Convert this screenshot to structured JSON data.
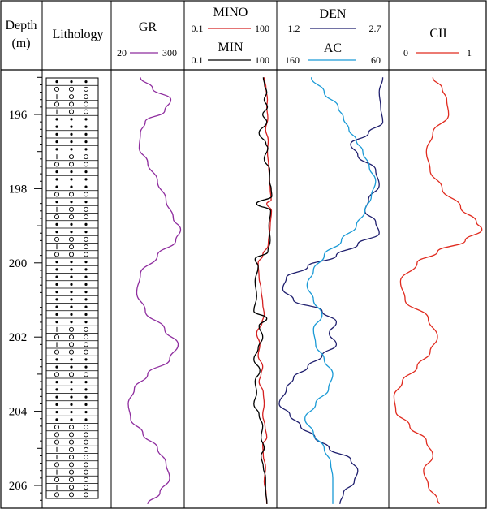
{
  "chart_data": {
    "type": "line",
    "depth_axis": {
      "label_line1": "Depth",
      "label_line2": "(m)",
      "range": [
        194.8,
        206.5
      ],
      "ticks": [
        196,
        198,
        200,
        202,
        204,
        206
      ]
    },
    "lithology": {
      "label": "Lithology",
      "rows": [
        "d",
        "o",
        "l",
        "o",
        "l",
        "d",
        "d",
        "d",
        "d",
        "d",
        "l",
        "o",
        "d",
        "d",
        "d",
        "o",
        "d",
        "l",
        "o",
        "d",
        "d",
        "o",
        "l",
        "o",
        "d",
        "d",
        "d",
        "d",
        "d",
        "d",
        "d",
        "d",
        "d",
        "l",
        "o",
        "l",
        "o",
        "d",
        "d",
        "o",
        "d",
        "d",
        "d",
        "d",
        "d",
        "d",
        "o",
        "o",
        "o",
        "l",
        "l",
        "o",
        "l",
        "o",
        "l",
        "o"
      ]
    },
    "tracks": [
      {
        "title": "GR",
        "series": [
          {
            "name": "GR",
            "color": "#8e2c9e",
            "scale_min": "20",
            "scale_max": "300",
            "depth": [
              195.0,
              195.3,
              195.6,
              195.9,
              196.2,
              196.5,
              196.9,
              197.3,
              197.8,
              198.3,
              198.8,
              199.1,
              199.4,
              199.8,
              200.3,
              200.8,
              201.3,
              201.8,
              202.2,
              202.6,
              203.0,
              203.4,
              203.8,
              204.2,
              204.6,
              205.0,
              205.4,
              205.8,
              206.2,
              206.5
            ],
            "values": [
              130,
              180,
              255,
              230,
              150,
              130,
              125,
              160,
              200,
              235,
              265,
              295,
              275,
              200,
              130,
              115,
              150,
              230,
              285,
              250,
              160,
              105,
              80,
              90,
              140,
              200,
              235,
              250,
              210,
              160
            ]
          }
        ]
      },
      {
        "title": "MINO / MIN",
        "series": [
          {
            "name": "MINO",
            "color": "#d42020",
            "scale_min": "0.1",
            "scale_max": "100",
            "depth": [
              195.0,
              195.3,
              195.6,
              195.8,
              196.1,
              196.4,
              196.7,
              197.0,
              197.4,
              197.7,
              198.0,
              198.3,
              198.4,
              198.6,
              199.0,
              199.5,
              199.8,
              200.0,
              200.4,
              200.7,
              201.1,
              201.4,
              201.6,
              201.9,
              202.2,
              202.5,
              202.8,
              203.0,
              203.2,
              203.5,
              203.8,
              204.1,
              204.4,
              204.7,
              204.9,
              205.2,
              205.5,
              205.9,
              206.2,
              206.5
            ],
            "values": [
              45,
              52,
              58,
              55,
              60,
              50,
              62,
              58,
              64,
              68,
              72,
              78,
              55,
              80,
              72,
              62,
              40,
              28,
              30,
              35,
              40,
              45,
              38,
              25,
              32,
              28,
              40,
              35,
              30,
              42,
              45,
              40,
              48,
              55,
              40,
              42,
              50,
              45,
              52,
              55
            ]
          },
          {
            "name": "MIN",
            "color": "#000000",
            "scale_min": "0.1",
            "scale_max": "100",
            "depth": [
              195.0,
              195.2,
              195.4,
              195.6,
              195.8,
              196.0,
              196.2,
              196.5,
              196.8,
              196.9,
              197.2,
              197.5,
              197.8,
              198.0,
              198.2,
              198.4,
              198.6,
              199.0,
              199.4,
              199.7,
              199.9,
              200.1,
              200.5,
              200.9,
              201.3,
              201.5,
              201.7,
              202.0,
              202.3,
              202.6,
              202.9,
              203.2,
              203.5,
              203.8,
              204.1,
              204.4,
              204.7,
              205.0,
              205.2,
              205.5,
              205.8,
              206.1,
              206.5
            ],
            "values": [
              42,
              46,
              55,
              45,
              58,
              40,
              55,
              30,
              52,
              60,
              45,
              70,
              68,
              78,
              82,
              25,
              75,
              65,
              72,
              60,
              22,
              28,
              22,
              25,
              20,
              55,
              30,
              40,
              28,
              20,
              32,
              22,
              25,
              20,
              30,
              40,
              35,
              45,
              35,
              42,
              50,
              50,
              56
            ]
          }
        ]
      },
      {
        "title": "DEN / AC",
        "series": [
          {
            "name": "DEN",
            "color": "#1f1f6e",
            "scale_min": "1.2",
            "scale_max": "2.7",
            "depth": [
              195.0,
              195.4,
              195.8,
              196.2,
              196.5,
              196.8,
              197.1,
              197.5,
              197.9,
              198.3,
              198.6,
              198.9,
              199.2,
              199.5,
              199.8,
              200.1,
              200.4,
              200.7,
              201.0,
              201.3,
              201.6,
              201.9,
              202.2,
              202.5,
              202.8,
              203.1,
              203.4,
              203.8,
              204.1,
              204.4,
              204.7,
              205.0,
              205.3,
              205.6,
              205.9,
              206.2,
              206.5
            ],
            "values": [
              2.65,
              2.6,
              2.62,
              2.65,
              2.45,
              2.2,
              2.3,
              2.55,
              2.6,
              2.45,
              2.4,
              2.55,
              2.6,
              2.3,
              2.0,
              1.6,
              1.3,
              1.25,
              1.4,
              1.8,
              2.0,
              1.9,
              2.0,
              1.8,
              1.6,
              1.4,
              1.3,
              1.2,
              1.35,
              1.5,
              1.7,
              1.9,
              2.2,
              2.3,
              2.25,
              2.1,
              2.05
            ]
          },
          {
            "name": "AC",
            "color": "#1a9ad6",
            "scale_min": "160",
            "scale_max": "60",
            "depth": [
              195.0,
              195.4,
              195.8,
              196.1,
              196.4,
              196.7,
              197.0,
              197.4,
              197.8,
              198.2,
              198.6,
              199.0,
              199.4,
              199.8,
              200.2,
              200.6,
              201.0,
              201.4,
              201.8,
              202.2,
              202.6,
              203.0,
              203.4,
              203.8,
              204.2,
              204.6,
              205.0,
              205.4,
              205.8,
              206.2,
              206.5
            ],
            "values": [
              130,
              118,
              105,
              100,
              95,
              88,
              82,
              76,
              70,
              74,
              80,
              88,
              102,
              118,
              128,
              134,
              128,
              120,
              128,
              126,
              118,
              110,
              114,
              126,
              136,
              128,
              118,
              112,
              110,
              110,
              110
            ]
          }
        ]
      },
      {
        "title": "CII",
        "series": [
          {
            "name": "CII",
            "color": "#e02a1e",
            "scale_min": "0",
            "scale_max": "1",
            "depth": [
              195.0,
              195.3,
              195.6,
              196.0,
              196.5,
              197.0,
              197.5,
              198.0,
              198.5,
              198.9,
              199.1,
              199.4,
              199.7,
              200.0,
              200.5,
              201.0,
              201.5,
              202.0,
              202.4,
              202.8,
              203.2,
              203.6,
              204.0,
              204.4,
              204.8,
              205.2,
              205.6,
              206.0,
              206.4,
              206.5
            ],
            "values": [
              0.45,
              0.55,
              0.6,
              0.62,
              0.45,
              0.38,
              0.42,
              0.55,
              0.75,
              0.92,
              0.98,
              0.8,
              0.5,
              0.28,
              0.1,
              0.15,
              0.4,
              0.5,
              0.42,
              0.28,
              0.12,
              0.03,
              0.05,
              0.2,
              0.38,
              0.45,
              0.35,
              0.4,
              0.5,
              0.52
            ]
          }
        ]
      }
    ]
  }
}
